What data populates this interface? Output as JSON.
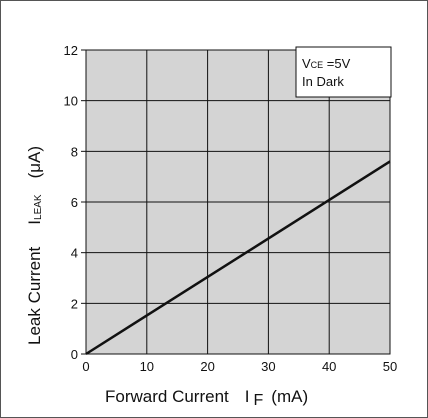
{
  "chart_data": {
    "type": "line",
    "x_axis": {
      "label_text": "Forward Current",
      "label_symbol": "I",
      "label_subscript": "F",
      "label_unit": "(mA)",
      "lim": [
        0,
        50
      ],
      "ticks": [
        "0",
        "10",
        "20",
        "30",
        "40",
        "50"
      ]
    },
    "y_axis": {
      "label_text": "Leak Current",
      "label_symbol": "I",
      "label_subscript": "LEAK",
      "label_unit": "(μA)",
      "lim": [
        0,
        12
      ],
      "ticks": [
        "0",
        "2",
        "4",
        "6",
        "8",
        "10",
        "12"
      ]
    },
    "grid": true,
    "plot_background": "#d4d4d4",
    "line_color": "#111111",
    "legend_position": "top-right",
    "conditions": {
      "line1_prefix": "V",
      "line1_subscript": "CE",
      "line1_suffix": " =5V",
      "line2": "In Dark"
    },
    "series": [
      {
        "x": [
          0,
          50
        ],
        "y": [
          0,
          7.6
        ]
      }
    ]
  }
}
